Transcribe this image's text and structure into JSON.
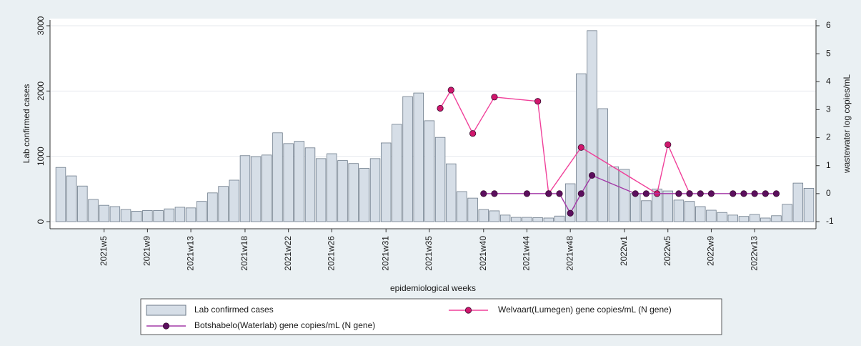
{
  "chart_data": {
    "type": "bar",
    "x_label": "epidemiological weeks",
    "y_label": "Lab confirmed cases",
    "y2_label": "wastewater log copies/mL",
    "categories": [
      null,
      null,
      null,
      null,
      "2021w5",
      null,
      null,
      null,
      "2021w9",
      null,
      null,
      null,
      "2021w13",
      null,
      null,
      null,
      null,
      "2021w18",
      null,
      null,
      null,
      "2021w22",
      null,
      null,
      null,
      "2021w26",
      null,
      null,
      null,
      null,
      "2021w31",
      null,
      null,
      null,
      "2021w35",
      null,
      null,
      null,
      null,
      "2021w40",
      null,
      null,
      null,
      "2021w44",
      null,
      null,
      null,
      "2021w48",
      null,
      null,
      null,
      null,
      "2022w1",
      null,
      null,
      null,
      "2022w5",
      null,
      null,
      null,
      "2022w9",
      null,
      null,
      null,
      "2022w13",
      null,
      null,
      null,
      null,
      null
    ],
    "ylim": [
      0,
      3000
    ],
    "yticks": [
      0,
      1000,
      2000,
      3000
    ],
    "y2lim": [
      -1,
      6
    ],
    "y2ticks": [
      -1,
      0,
      1,
      2,
      3,
      4,
      5,
      6
    ],
    "grid": true,
    "series": [
      {
        "name": "Lab confirmed cases",
        "type": "bar",
        "color": "#d6dee7",
        "values": [
          830,
          700,
          545,
          340,
          250,
          230,
          185,
          160,
          170,
          170,
          195,
          220,
          210,
          310,
          440,
          540,
          635,
          1010,
          995,
          1020,
          1360,
          1195,
          1230,
          1130,
          965,
          1040,
          935,
          890,
          815,
          965,
          1205,
          1490,
          1915,
          1970,
          1545,
          1290,
          885,
          460,
          360,
          185,
          165,
          100,
          65,
          65,
          60,
          55,
          85,
          580,
          2265,
          2925,
          1730,
          840,
          800,
          430,
          320,
          500,
          470,
          330,
          310,
          230,
          175,
          140,
          100,
          80,
          110,
          55,
          90,
          265,
          590,
          510
        ]
      },
      {
        "name": "Welvaart(Lumegen) gene copies/mL (N gene)",
        "type": "line",
        "axis": "y2",
        "color": "#f0409a",
        "values": [
          null,
          null,
          null,
          null,
          null,
          null,
          null,
          null,
          null,
          null,
          null,
          null,
          null,
          null,
          null,
          null,
          null,
          null,
          null,
          null,
          null,
          null,
          null,
          null,
          null,
          null,
          null,
          null,
          null,
          null,
          null,
          null,
          null,
          null,
          null,
          3.05,
          3.7,
          null,
          2.15,
          null,
          3.45,
          null,
          null,
          null,
          3.3,
          0,
          null,
          null,
          1.65,
          null,
          null,
          null,
          null,
          null,
          null,
          0,
          1.75,
          null,
          0,
          null,
          null,
          null,
          null,
          null,
          null,
          null,
          null,
          null,
          null,
          null
        ]
      },
      {
        "name": "Botshabelo(Waterlab) gene copies/mL (N gene)",
        "type": "line",
        "axis": "y2",
        "color": "#a43aa8",
        "values": [
          null,
          null,
          null,
          null,
          null,
          null,
          null,
          null,
          null,
          null,
          null,
          null,
          null,
          null,
          null,
          null,
          null,
          null,
          null,
          null,
          null,
          null,
          null,
          null,
          null,
          null,
          null,
          null,
          null,
          null,
          null,
          null,
          null,
          null,
          null,
          null,
          null,
          null,
          null,
          0,
          0,
          null,
          null,
          0,
          null,
          0,
          0,
          -0.7,
          0,
          0.65,
          null,
          null,
          null,
          0,
          0,
          null,
          null,
          0,
          0,
          0,
          0,
          null,
          0,
          0,
          0,
          0,
          0,
          null,
          null,
          null
        ]
      }
    ]
  }
}
